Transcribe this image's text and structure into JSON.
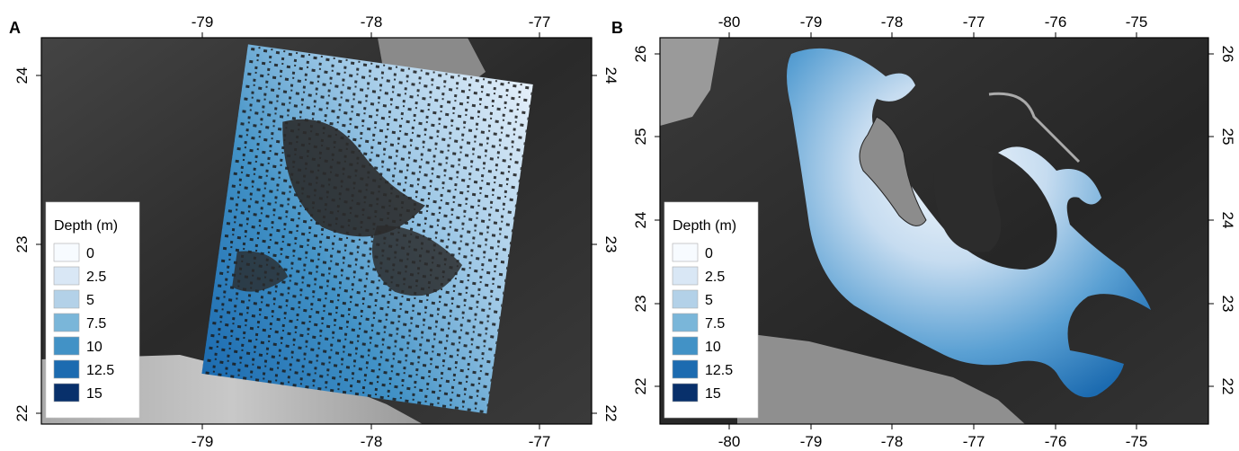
{
  "panels": [
    {
      "letter": "A",
      "x_ticks": [
        "-79",
        "-78",
        "-77"
      ],
      "y_ticks": [
        "24",
        "23",
        "22"
      ],
      "legend": {
        "title": "Depth (m)",
        "entries": [
          {
            "label": "0",
            "color": "#f7fbff"
          },
          {
            "label": "2.5",
            "color": "#d9e7f5"
          },
          {
            "label": "5",
            "color": "#b3d1e8"
          },
          {
            "label": "7.5",
            "color": "#7ab6d9"
          },
          {
            "label": "10",
            "color": "#4292c6"
          },
          {
            "label": "12.5",
            "color": "#1c6bb0"
          },
          {
            "label": "15",
            "color": "#08306b"
          }
        ]
      }
    },
    {
      "letter": "B",
      "x_ticks": [
        "-80",
        "-79",
        "-78",
        "-77",
        "-76",
        "-75"
      ],
      "y_ticks": [
        "26",
        "25",
        "24",
        "23",
        "22"
      ],
      "legend": {
        "title": "Depth (m)",
        "entries": [
          {
            "label": "0",
            "color": "#f7fbff"
          },
          {
            "label": "2.5",
            "color": "#d9e7f5"
          },
          {
            "label": "5",
            "color": "#b3d1e8"
          },
          {
            "label": "7.5",
            "color": "#7ab6d9"
          },
          {
            "label": "10",
            "color": "#4292c6"
          },
          {
            "label": "12.5",
            "color": "#1c6bb0"
          },
          {
            "label": "15",
            "color": "#08306b"
          }
        ]
      }
    }
  ]
}
